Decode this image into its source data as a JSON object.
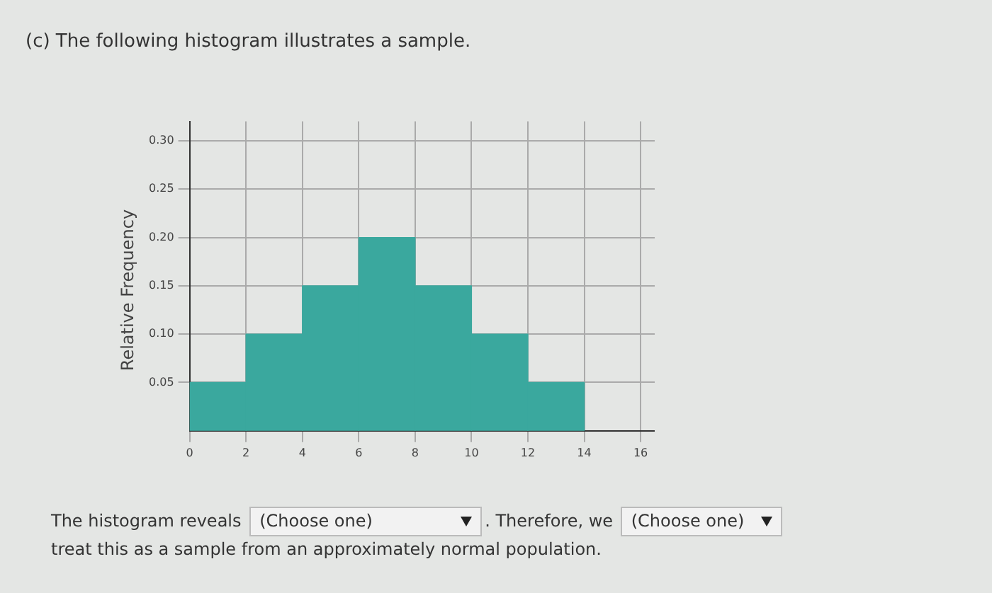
{
  "chart_data": {
    "type": "histogram",
    "title": "(c) The following histogram illustrates a sample.",
    "ylabel": "Relative Frequency",
    "bins": [
      0,
      2,
      4,
      6,
      8,
      10,
      12,
      14
    ],
    "values": [
      0.05,
      0.1,
      0.15,
      0.2,
      0.15,
      0.1,
      0.05
    ],
    "color": "#3aa89e",
    "xlim": [
      0,
      16.5
    ],
    "xticks": [
      0,
      2,
      4,
      6,
      8,
      10,
      12,
      14,
      16
    ],
    "ylim": [
      0,
      0.32
    ],
    "yticks": [
      {
        "value": 0.05,
        "label": "0.05"
      },
      {
        "value": 0.1,
        "label": "0.10"
      },
      {
        "value": 0.15,
        "label": "0.15"
      },
      {
        "value": 0.2,
        "label": "0.20"
      },
      {
        "value": 0.25,
        "label": "0.25"
      },
      {
        "value": 0.3,
        "label": "0.30"
      }
    ],
    "grid": true,
    "legend": false,
    "annotations": [
      "The histogram reveals",
      "(Choose one)",
      ". Therefore, we",
      "(Choose one)",
      "treat this as a sample from an approximately normal population."
    ]
  }
}
